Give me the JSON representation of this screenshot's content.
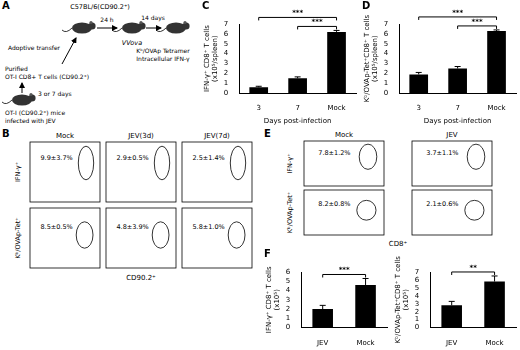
{
  "figure": {
    "panel_letters": [
      "A",
      "B",
      "C",
      "D",
      "E",
      "F"
    ],
    "panel_A": {
      "recipient": "C57BL/6(CD90.2⁺)",
      "interval_1": "24 h",
      "interval_2": "14 days",
      "transfer": "Adoptive transfer",
      "cells": [
        "Purified",
        "OT-I CD8+ T cells (CD90.2⁺)"
      ],
      "infection_time": "3 or 7 days",
      "donor": [
        "OT-I (CD90.2⁺) mice",
        "infected with JEV"
      ],
      "challenge": "VVova",
      "readout": [
        "Kᵇ/OVAp Tetramer",
        "Intracellular IFN-γ"
      ]
    },
    "panel_B": {
      "columns": [
        "Mock",
        "JEV(3d)",
        "JEV(7d)"
      ],
      "rows": [
        {
          "label": "IFN-γ⁺",
          "values": [
            "9.9±3.7%",
            "2.9±0.5%",
            "2.5±1.4%"
          ]
        },
        {
          "label": "Kᵇ/OVAp-Tet⁺",
          "values": [
            "8.5±0.5%",
            "4.8±3.9%",
            "5.8±1.0%"
          ]
        }
      ],
      "x_label": "CD90.2⁺"
    },
    "panel_E": {
      "columns": [
        "Mock",
        "JEV"
      ],
      "rows": [
        {
          "label": "IFN-γ⁺",
          "values": [
            "7.8±1.2%",
            "3.7±1.1%"
          ]
        },
        {
          "label": "Kᵇ/OVAp-Tet⁺",
          "values": [
            "8.2±0.8%",
            "2.1±0.6%"
          ]
        }
      ],
      "x_label": "CD8⁺"
    }
  },
  "chart_data": [
    {
      "type": "bar",
      "y_label": [
        "IFN-γ⁺ CD8⁺ T cells",
        "(x10⁵/spleen)"
      ],
      "x_label": "Days post-infection",
      "categories": [
        "3",
        "7",
        "Mock"
      ],
      "values": [
        0.6,
        1.5,
        6.2
      ],
      "errors": [
        0.1,
        0.15,
        0.15
      ],
      "significance": [
        "***",
        "***",
        null
      ],
      "color": "#000000",
      "grid": false,
      "ylim": [
        0,
        7
      ],
      "yticks": [
        0,
        1,
        2,
        3,
        4,
        5,
        6,
        7
      ]
    },
    {
      "type": "bar",
      "y_label": [
        "Kᵇ/OVAp-Tet⁺CD8⁺ T cells",
        "(x10⁵/spleen)"
      ],
      "x_label": "Days post-infection",
      "categories": [
        "3",
        "7",
        "Mock"
      ],
      "values": [
        1.9,
        2.5,
        6.3
      ],
      "errors": [
        0.2,
        0.2,
        0.1
      ],
      "significance": [
        "***",
        "***",
        null
      ],
      "color": "#000000",
      "grid": false,
      "ylim": [
        0,
        7
      ],
      "yticks": [
        0,
        1,
        2,
        3,
        4,
        5,
        6,
        7
      ]
    },
    {
      "type": "bar",
      "y_label": [
        "IFN-γ⁺ CD8⁺ T cells",
        "(x10⁵)"
      ],
      "categories": [
        "JEV",
        "Mock"
      ],
      "values": [
        2.0,
        4.6
      ],
      "errors": [
        0.4,
        0.7
      ],
      "significance": [
        "***",
        null
      ],
      "color": "#000000",
      "grid": false,
      "ylim": [
        0,
        6
      ],
      "yticks": [
        0,
        1,
        2,
        3,
        4,
        5,
        6
      ]
    },
    {
      "type": "bar",
      "y_label": [
        "Kᵇ/OVAp-Tet⁺CD8⁺ T cells",
        "(x10⁵)"
      ],
      "categories": [
        "JEV",
        "Mock"
      ],
      "values": [
        2.8,
        5.8
      ],
      "errors": [
        0.5,
        0.7
      ],
      "significance": [
        "**",
        null
      ],
      "color": "#000000",
      "grid": false,
      "ylim": [
        0,
        7
      ],
      "yticks": [
        0,
        1,
        2,
        3,
        4,
        5,
        6,
        7
      ]
    }
  ]
}
